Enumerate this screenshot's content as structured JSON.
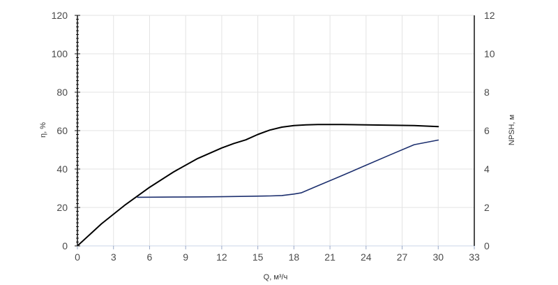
{
  "chart_data": {
    "type": "line",
    "xlabel": "Q, м³/ч",
    "ylabel_left": "η, %",
    "ylabel_right": "NPSH, м",
    "xlim": [
      0,
      33
    ],
    "ylim_left": [
      0,
      120
    ],
    "ylim_right": [
      0,
      12
    ],
    "x_ticks": [
      0,
      3,
      6,
      9,
      12,
      15,
      18,
      21,
      24,
      27,
      30,
      33
    ],
    "y_left_ticks": [
      0,
      20,
      40,
      60,
      80,
      100,
      120
    ],
    "y_right_ticks": [
      0,
      2,
      4,
      6,
      8,
      10,
      12
    ],
    "grid": true,
    "series": [
      {
        "axis": "left",
        "color": "#000000",
        "x": [
          0,
          2,
          4,
          6,
          8,
          10,
          12,
          13,
          14,
          15,
          16,
          17,
          18,
          19,
          20,
          22,
          24,
          26,
          28,
          30
        ],
        "y": [
          0,
          11.5,
          21.5,
          30.5,
          38.5,
          45.5,
          51,
          53.3,
          55.2,
          58,
          60.3,
          61.8,
          62.6,
          63,
          63.2,
          63.2,
          63,
          62.8,
          62.6,
          62.1
        ]
      },
      {
        "axis": "right",
        "color": "#1c2f6e",
        "x": [
          5,
          8,
          10,
          12,
          14,
          16,
          17,
          18,
          18.6,
          20,
          22,
          24,
          26,
          28,
          30
        ],
        "y": [
          2.53,
          2.54,
          2.55,
          2.56,
          2.58,
          2.6,
          2.62,
          2.7,
          2.76,
          3.13,
          3.66,
          4.2,
          4.74,
          5.27,
          5.51
        ]
      }
    ]
  }
}
